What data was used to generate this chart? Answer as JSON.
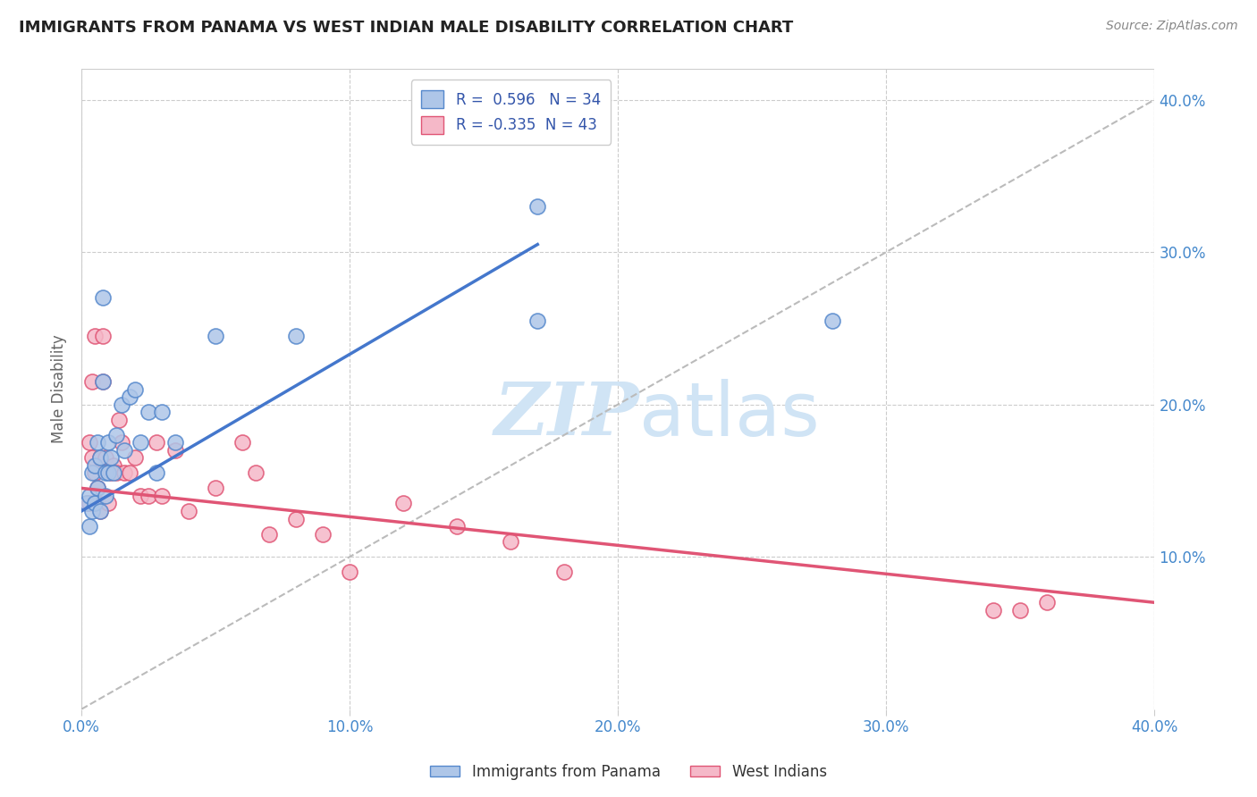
{
  "title": "IMMIGRANTS FROM PANAMA VS WEST INDIAN MALE DISABILITY CORRELATION CHART",
  "source": "Source: ZipAtlas.com",
  "ylabel": "Male Disability",
  "xlim": [
    0.0,
    0.4
  ],
  "ylim": [
    0.0,
    0.42
  ],
  "ytick_values": [
    0.1,
    0.2,
    0.3,
    0.4
  ],
  "xtick_values": [
    0.0,
    0.1,
    0.2,
    0.3,
    0.4
  ],
  "blue_R": 0.596,
  "blue_N": 34,
  "pink_R": -0.335,
  "pink_N": 43,
  "blue_fill_color": "#aec6e8",
  "pink_fill_color": "#f5b8c8",
  "blue_edge_color": "#5588cc",
  "pink_edge_color": "#e05575",
  "blue_line_color": "#4477cc",
  "pink_line_color": "#e05575",
  "legend_text_color": "#3355aa",
  "watermark_color": "#d0e4f5",
  "background_color": "#ffffff",
  "grid_color": "#cccccc",
  "title_color": "#222222",
  "axis_tick_color": "#4488cc",
  "blue_scatter_x": [
    0.002,
    0.003,
    0.003,
    0.004,
    0.004,
    0.005,
    0.005,
    0.006,
    0.006,
    0.007,
    0.007,
    0.008,
    0.008,
    0.009,
    0.009,
    0.01,
    0.01,
    0.011,
    0.012,
    0.013,
    0.015,
    0.016,
    0.018,
    0.02,
    0.022,
    0.025,
    0.028,
    0.03,
    0.035,
    0.05,
    0.08,
    0.17,
    0.17,
    0.28
  ],
  "blue_scatter_y": [
    0.135,
    0.14,
    0.12,
    0.155,
    0.13,
    0.16,
    0.135,
    0.175,
    0.145,
    0.165,
    0.13,
    0.27,
    0.215,
    0.155,
    0.14,
    0.175,
    0.155,
    0.165,
    0.155,
    0.18,
    0.2,
    0.17,
    0.205,
    0.21,
    0.175,
    0.195,
    0.155,
    0.195,
    0.175,
    0.245,
    0.245,
    0.33,
    0.255,
    0.255
  ],
  "pink_scatter_x": [
    0.002,
    0.003,
    0.003,
    0.004,
    0.004,
    0.005,
    0.005,
    0.006,
    0.006,
    0.007,
    0.007,
    0.008,
    0.008,
    0.009,
    0.01,
    0.011,
    0.012,
    0.013,
    0.014,
    0.015,
    0.016,
    0.018,
    0.02,
    0.022,
    0.025,
    0.028,
    0.03,
    0.035,
    0.04,
    0.05,
    0.06,
    0.065,
    0.07,
    0.08,
    0.09,
    0.1,
    0.12,
    0.14,
    0.16,
    0.18,
    0.34,
    0.35,
    0.36
  ],
  "pink_scatter_y": [
    0.135,
    0.175,
    0.135,
    0.215,
    0.165,
    0.245,
    0.155,
    0.135,
    0.145,
    0.165,
    0.13,
    0.245,
    0.215,
    0.165,
    0.135,
    0.155,
    0.16,
    0.155,
    0.19,
    0.175,
    0.155,
    0.155,
    0.165,
    0.14,
    0.14,
    0.175,
    0.14,
    0.17,
    0.13,
    0.145,
    0.175,
    0.155,
    0.115,
    0.125,
    0.115,
    0.09,
    0.135,
    0.12,
    0.11,
    0.09,
    0.065,
    0.065,
    0.07
  ],
  "blue_line_x0": 0.0,
  "blue_line_y0": 0.13,
  "blue_line_x1": 0.17,
  "blue_line_y1": 0.305,
  "pink_line_x0": 0.0,
  "pink_line_y0": 0.145,
  "pink_line_x1": 0.4,
  "pink_line_y1": 0.07
}
